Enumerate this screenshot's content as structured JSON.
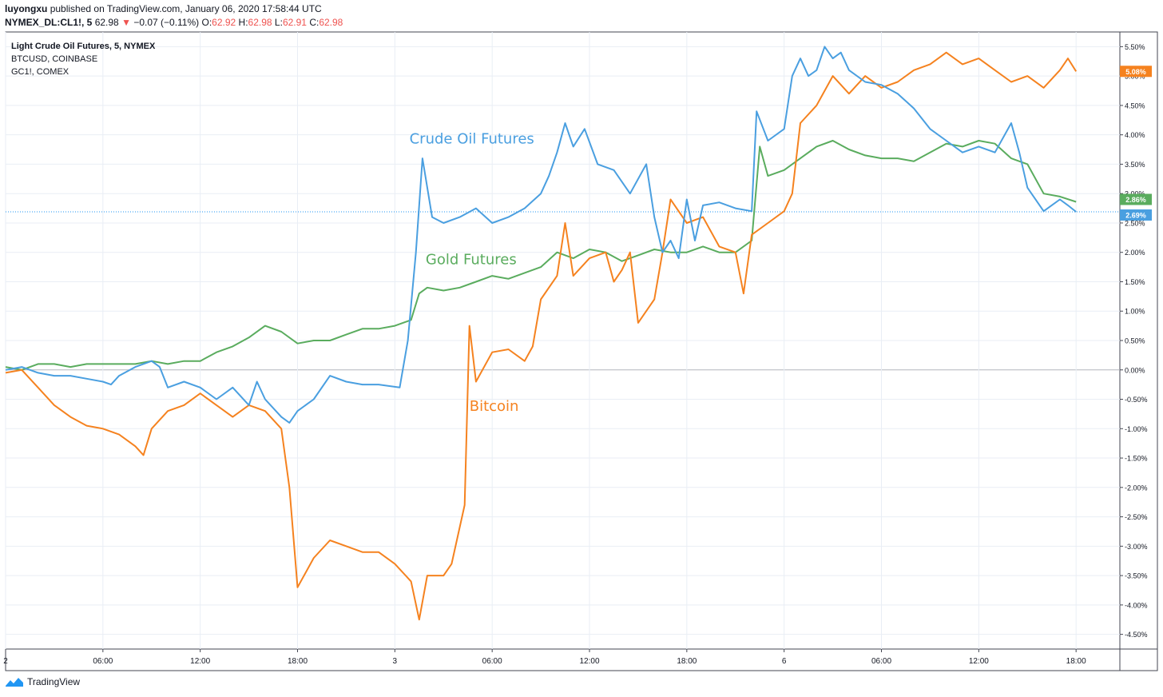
{
  "header": {
    "author": "luyongxu",
    "published_text": "published on TradingView.com, January 06, 2020 17:58:44 UTC",
    "symbol": "NYMEX_DL:CL1!, 5",
    "last": "62.98",
    "change_arrow": "▼",
    "change": "−0.07 (−0.11%)",
    "o_label": "O:",
    "o_value": "62.92",
    "h_label": "H:",
    "h_value": "62.98",
    "l_label": "L:",
    "l_value": "62.91",
    "c_label": "C:",
    "c_value": "62.98"
  },
  "legend": {
    "main": "Light Crude Oil Futures, 5, NYMEX",
    "compare1": "BTCUSD, COINBASE",
    "compare2": "GC1!, COMEX"
  },
  "footer": {
    "brand": "TradingView"
  },
  "colors": {
    "crude": "#4a9fe0",
    "gold": "#5aac5e",
    "bitcoin": "#f5821f",
    "zero_line": "#b2b5be",
    "grid": "#e9eef5",
    "last_line": "#2196f3"
  },
  "chart_data": {
    "type": "line",
    "y_unit": "%",
    "ylim": [
      -4.75,
      5.75
    ],
    "y_ticks": [
      "5.50%",
      "5.00%",
      "4.50%",
      "4.00%",
      "3.50%",
      "3.00%",
      "2.50%",
      "2.00%",
      "1.50%",
      "1.00%",
      "0.50%",
      "0.00%",
      "-0.50%",
      "-1.00%",
      "-1.50%",
      "-2.00%",
      "-2.50%",
      "-3.00%",
      "-3.50%",
      "-4.00%",
      "-4.50%"
    ],
    "y_tick_values": [
      5.5,
      5.0,
      4.5,
      4.0,
      3.5,
      3.0,
      2.5,
      2.0,
      1.5,
      1.0,
      0.5,
      0,
      -0.5,
      -1.0,
      -1.5,
      -2.0,
      -2.5,
      -3.0,
      -3.5,
      -4.0,
      -4.5
    ],
    "x_ticks": [
      {
        "label": "2",
        "t": 0
      },
      {
        "label": "06:00",
        "t": 6
      },
      {
        "label": "12:00",
        "t": 12
      },
      {
        "label": "18:00",
        "t": 18
      },
      {
        "label": "3",
        "t": 24
      },
      {
        "label": "06:00",
        "t": 30
      },
      {
        "label": "12:00",
        "t": 36
      },
      {
        "label": "18:00",
        "t": 42
      },
      {
        "label": "6",
        "t": 48
      },
      {
        "label": "06:00",
        "t": 54
      },
      {
        "label": "12:00",
        "t": 60
      },
      {
        "label": "18:00",
        "t": 66
      }
    ],
    "xlim": [
      0,
      68.7
    ],
    "grid": true,
    "annotations": [
      {
        "text": "Crude Oil Futures",
        "series": "crude",
        "t": 24.9,
        "y": 3.85
      },
      {
        "text": "Gold Futures",
        "series": "gold",
        "t": 25.9,
        "y": 1.8
      },
      {
        "text": "Bitcoin",
        "series": "bitcoin",
        "t": 28.6,
        "y": -0.7
      }
    ],
    "price_labels": [
      {
        "series": "bitcoin",
        "text": "5.08%",
        "y": 5.08
      },
      {
        "series": "gold",
        "text": "2.86%",
        "y": 2.86
      },
      {
        "series": "crude",
        "text": "2.69%",
        "y": 2.69
      }
    ],
    "series": [
      {
        "key": "crude",
        "points": [
          [
            0,
            0
          ],
          [
            1,
            0.05
          ],
          [
            2,
            -0.05
          ],
          [
            3,
            -0.1
          ],
          [
            4,
            -0.1
          ],
          [
            5,
            -0.15
          ],
          [
            6,
            -0.2
          ],
          [
            6.5,
            -0.25
          ],
          [
            7,
            -0.1
          ],
          [
            8,
            0.05
          ],
          [
            9,
            0.15
          ],
          [
            9.5,
            0.05
          ],
          [
            10,
            -0.3
          ],
          [
            11,
            -0.2
          ],
          [
            12,
            -0.3
          ],
          [
            13,
            -0.5
          ],
          [
            14,
            -0.3
          ],
          [
            15,
            -0.6
          ],
          [
            15.5,
            -0.2
          ],
          [
            16,
            -0.5
          ],
          [
            17,
            -0.8
          ],
          [
            17.5,
            -0.9
          ],
          [
            18,
            -0.7
          ],
          [
            19,
            -0.5
          ],
          [
            20,
            -0.1
          ],
          [
            21,
            -0.2
          ],
          [
            22,
            -0.25
          ],
          [
            23,
            -0.25
          ],
          [
            24.3,
            -0.3
          ],
          [
            24.8,
            0.5
          ],
          [
            25.3,
            2.0
          ],
          [
            25.7,
            3.6
          ],
          [
            26.3,
            2.6
          ],
          [
            27,
            2.5
          ],
          [
            28,
            2.6
          ],
          [
            29,
            2.75
          ],
          [
            30,
            2.5
          ],
          [
            31,
            2.6
          ],
          [
            32,
            2.75
          ],
          [
            33,
            3.0
          ],
          [
            33.5,
            3.3
          ],
          [
            34,
            3.7
          ],
          [
            34.5,
            4.2
          ],
          [
            35,
            3.8
          ],
          [
            35.7,
            4.1
          ],
          [
            36.5,
            3.5
          ],
          [
            37.5,
            3.4
          ],
          [
            38.5,
            3.0
          ],
          [
            39.5,
            3.5
          ],
          [
            40,
            2.6
          ],
          [
            40.5,
            2.0
          ],
          [
            41,
            2.2
          ],
          [
            41.5,
            1.9
          ],
          [
            42,
            2.9
          ],
          [
            42.5,
            2.2
          ],
          [
            43,
            2.8
          ],
          [
            44,
            2.85
          ],
          [
            45,
            2.75
          ],
          [
            46,
            2.7
          ],
          [
            46.3,
            4.4
          ],
          [
            47,
            3.9
          ],
          [
            48,
            4.1
          ],
          [
            48.5,
            5.0
          ],
          [
            49,
            5.3
          ],
          [
            49.5,
            5.0
          ],
          [
            50,
            5.1
          ],
          [
            50.5,
            5.5
          ],
          [
            51,
            5.3
          ],
          [
            51.5,
            5.4
          ],
          [
            52,
            5.1
          ],
          [
            53,
            4.9
          ],
          [
            54,
            4.85
          ],
          [
            55,
            4.7
          ],
          [
            56,
            4.45
          ],
          [
            57,
            4.1
          ],
          [
            58,
            3.9
          ],
          [
            59,
            3.7
          ],
          [
            60,
            3.8
          ],
          [
            61,
            3.7
          ],
          [
            62,
            4.2
          ],
          [
            62.5,
            3.7
          ],
          [
            63,
            3.1
          ],
          [
            64,
            2.7
          ],
          [
            65,
            2.9
          ],
          [
            65.5,
            2.8
          ],
          [
            66,
            2.69
          ]
        ]
      },
      {
        "key": "gold",
        "points": [
          [
            0,
            0.05
          ],
          [
            1,
            0.0
          ],
          [
            2,
            0.1
          ],
          [
            3,
            0.1
          ],
          [
            4,
            0.05
          ],
          [
            5,
            0.1
          ],
          [
            6,
            0.1
          ],
          [
            7,
            0.1
          ],
          [
            8,
            0.1
          ],
          [
            9,
            0.15
          ],
          [
            10,
            0.1
          ],
          [
            11,
            0.15
          ],
          [
            12,
            0.15
          ],
          [
            13,
            0.3
          ],
          [
            14,
            0.4
          ],
          [
            15,
            0.55
          ],
          [
            16,
            0.75
          ],
          [
            17,
            0.65
          ],
          [
            18,
            0.45
          ],
          [
            19,
            0.5
          ],
          [
            20,
            0.5
          ],
          [
            21,
            0.6
          ],
          [
            22,
            0.7
          ],
          [
            23,
            0.7
          ],
          [
            24,
            0.75
          ],
          [
            25,
            0.85
          ],
          [
            25.5,
            1.3
          ],
          [
            26,
            1.4
          ],
          [
            27,
            1.35
          ],
          [
            28,
            1.4
          ],
          [
            29,
            1.5
          ],
          [
            30,
            1.6
          ],
          [
            31,
            1.55
          ],
          [
            32,
            1.65
          ],
          [
            33,
            1.75
          ],
          [
            34,
            2.0
          ],
          [
            35,
            1.9
          ],
          [
            36,
            2.05
          ],
          [
            37,
            2.0
          ],
          [
            38,
            1.85
          ],
          [
            39,
            1.95
          ],
          [
            40,
            2.05
          ],
          [
            41,
            2.0
          ],
          [
            42,
            2.0
          ],
          [
            43,
            2.1
          ],
          [
            44,
            2.0
          ],
          [
            45,
            2.0
          ],
          [
            46,
            2.2
          ],
          [
            46.5,
            3.8
          ],
          [
            47,
            3.3
          ],
          [
            48,
            3.4
          ],
          [
            49,
            3.6
          ],
          [
            50,
            3.8
          ],
          [
            51,
            3.9
          ],
          [
            52,
            3.75
          ],
          [
            53,
            3.65
          ],
          [
            54,
            3.6
          ],
          [
            55,
            3.6
          ],
          [
            56,
            3.55
          ],
          [
            57,
            3.7
          ],
          [
            58,
            3.85
          ],
          [
            59,
            3.8
          ],
          [
            60,
            3.9
          ],
          [
            61,
            3.85
          ],
          [
            62,
            3.6
          ],
          [
            63,
            3.5
          ],
          [
            64,
            3.0
          ],
          [
            65,
            2.95
          ],
          [
            66,
            2.86
          ]
        ]
      },
      {
        "key": "bitcoin",
        "points": [
          [
            0,
            -0.05
          ],
          [
            1,
            0.0
          ],
          [
            2,
            -0.3
          ],
          [
            3,
            -0.6
          ],
          [
            4,
            -0.8
          ],
          [
            5,
            -0.95
          ],
          [
            6,
            -1.0
          ],
          [
            7,
            -1.1
          ],
          [
            8,
            -1.3
          ],
          [
            8.5,
            -1.45
          ],
          [
            9,
            -1.0
          ],
          [
            10,
            -0.7
          ],
          [
            11,
            -0.6
          ],
          [
            12,
            -0.4
          ],
          [
            13,
            -0.6
          ],
          [
            14,
            -0.8
          ],
          [
            15,
            -0.6
          ],
          [
            16,
            -0.7
          ],
          [
            17,
            -1.0
          ],
          [
            17.5,
            -2.0
          ],
          [
            18,
            -3.7
          ],
          [
            19,
            -3.2
          ],
          [
            20,
            -2.9
          ],
          [
            21,
            -3.0
          ],
          [
            22,
            -3.1
          ],
          [
            23,
            -3.1
          ],
          [
            24,
            -3.3
          ],
          [
            25,
            -3.6
          ],
          [
            25.5,
            -4.25
          ],
          [
            26,
            -3.5
          ],
          [
            27,
            -3.5
          ],
          [
            27.5,
            -3.3
          ],
          [
            28.3,
            -2.3
          ],
          [
            28.6,
            0.75
          ],
          [
            29,
            -0.2
          ],
          [
            30,
            0.3
          ],
          [
            31,
            0.35
          ],
          [
            32,
            0.15
          ],
          [
            32.5,
            0.4
          ],
          [
            33,
            1.2
          ],
          [
            34,
            1.6
          ],
          [
            34.5,
            2.5
          ],
          [
            35,
            1.6
          ],
          [
            36,
            1.9
          ],
          [
            37,
            2.0
          ],
          [
            37.5,
            1.5
          ],
          [
            38,
            1.7
          ],
          [
            38.5,
            2.0
          ],
          [
            39,
            0.8
          ],
          [
            40,
            1.2
          ],
          [
            40.5,
            2.0
          ],
          [
            41,
            2.9
          ],
          [
            42,
            2.5
          ],
          [
            43,
            2.6
          ],
          [
            44,
            2.1
          ],
          [
            45,
            2.0
          ],
          [
            45.5,
            1.3
          ],
          [
            46,
            2.3
          ],
          [
            47,
            2.5
          ],
          [
            48,
            2.7
          ],
          [
            48.5,
            3.0
          ],
          [
            49,
            4.2
          ],
          [
            50,
            4.5
          ],
          [
            51,
            5.0
          ],
          [
            52,
            4.7
          ],
          [
            53,
            5.0
          ],
          [
            54,
            4.8
          ],
          [
            55,
            4.9
          ],
          [
            56,
            5.1
          ],
          [
            57,
            5.2
          ],
          [
            58,
            5.4
          ],
          [
            59,
            5.2
          ],
          [
            60,
            5.3
          ],
          [
            61,
            5.1
          ],
          [
            62,
            4.9
          ],
          [
            63,
            5.0
          ],
          [
            64,
            4.8
          ],
          [
            65,
            5.1
          ],
          [
            65.5,
            5.3
          ],
          [
            66,
            5.08
          ]
        ]
      }
    ]
  }
}
